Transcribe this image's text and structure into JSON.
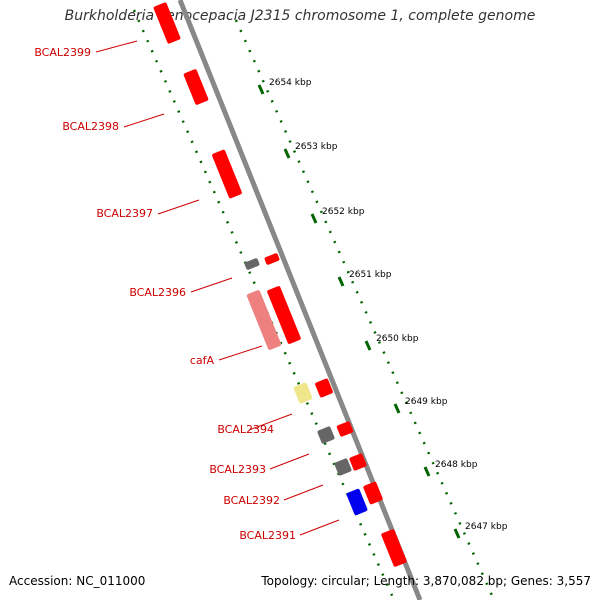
{
  "title": "Burkholderia cenocepacia J2315 chromosome 1, complete genome",
  "footer": {
    "accession": "Accession: NC_011000",
    "summary": "Topology: circular; Length: 3,870,082 bp; Genes: 3,557"
  },
  "colors": {
    "backbone": "#888888",
    "tick_dots": "#006400",
    "label_text": "#cc0000",
    "leader_line": "#cc0000",
    "gene_red": "#ff0000",
    "gene_gray": "#666666",
    "gene_pink": "#ee8080",
    "gene_yellow": "#f0e68c",
    "gene_blue": "#0000ee"
  },
  "scale_ticks": [
    {
      "label": "2654 kbp",
      "kbp": 2654
    },
    {
      "label": "2653 kbp",
      "kbp": 2653
    },
    {
      "label": "2652 kbp",
      "kbp": 2652
    },
    {
      "label": "2651 kbp",
      "kbp": 2651
    },
    {
      "label": "2650 kbp",
      "kbp": 2650
    },
    {
      "label": "2649 kbp",
      "kbp": 2649
    },
    {
      "label": "2648 kbp",
      "kbp": 2648
    },
    {
      "label": "2647 kbp",
      "kbp": 2647
    }
  ],
  "gene_labels": [
    {
      "label": "BCAL2399"
    },
    {
      "label": "BCAL2398"
    },
    {
      "label": "BCAL2397"
    },
    {
      "label": "BCAL2396"
    },
    {
      "label": "cafA"
    },
    {
      "label": "BCAL2394"
    },
    {
      "label": "BCAL2393"
    },
    {
      "label": "BCAL2392"
    },
    {
      "label": "BCAL2391"
    }
  ],
  "features": [
    {
      "type": "red"
    },
    {
      "type": "red"
    },
    {
      "type": "red"
    },
    {
      "type": "gray"
    },
    {
      "type": "pink"
    },
    {
      "type": "yellow"
    },
    {
      "type": "gray"
    },
    {
      "type": "gray"
    },
    {
      "type": "blue"
    },
    {
      "type": "red"
    },
    {
      "type": "red"
    },
    {
      "type": "red"
    },
    {
      "type": "red"
    },
    {
      "type": "red"
    },
    {
      "type": "red"
    },
    {
      "type": "red"
    }
  ]
}
